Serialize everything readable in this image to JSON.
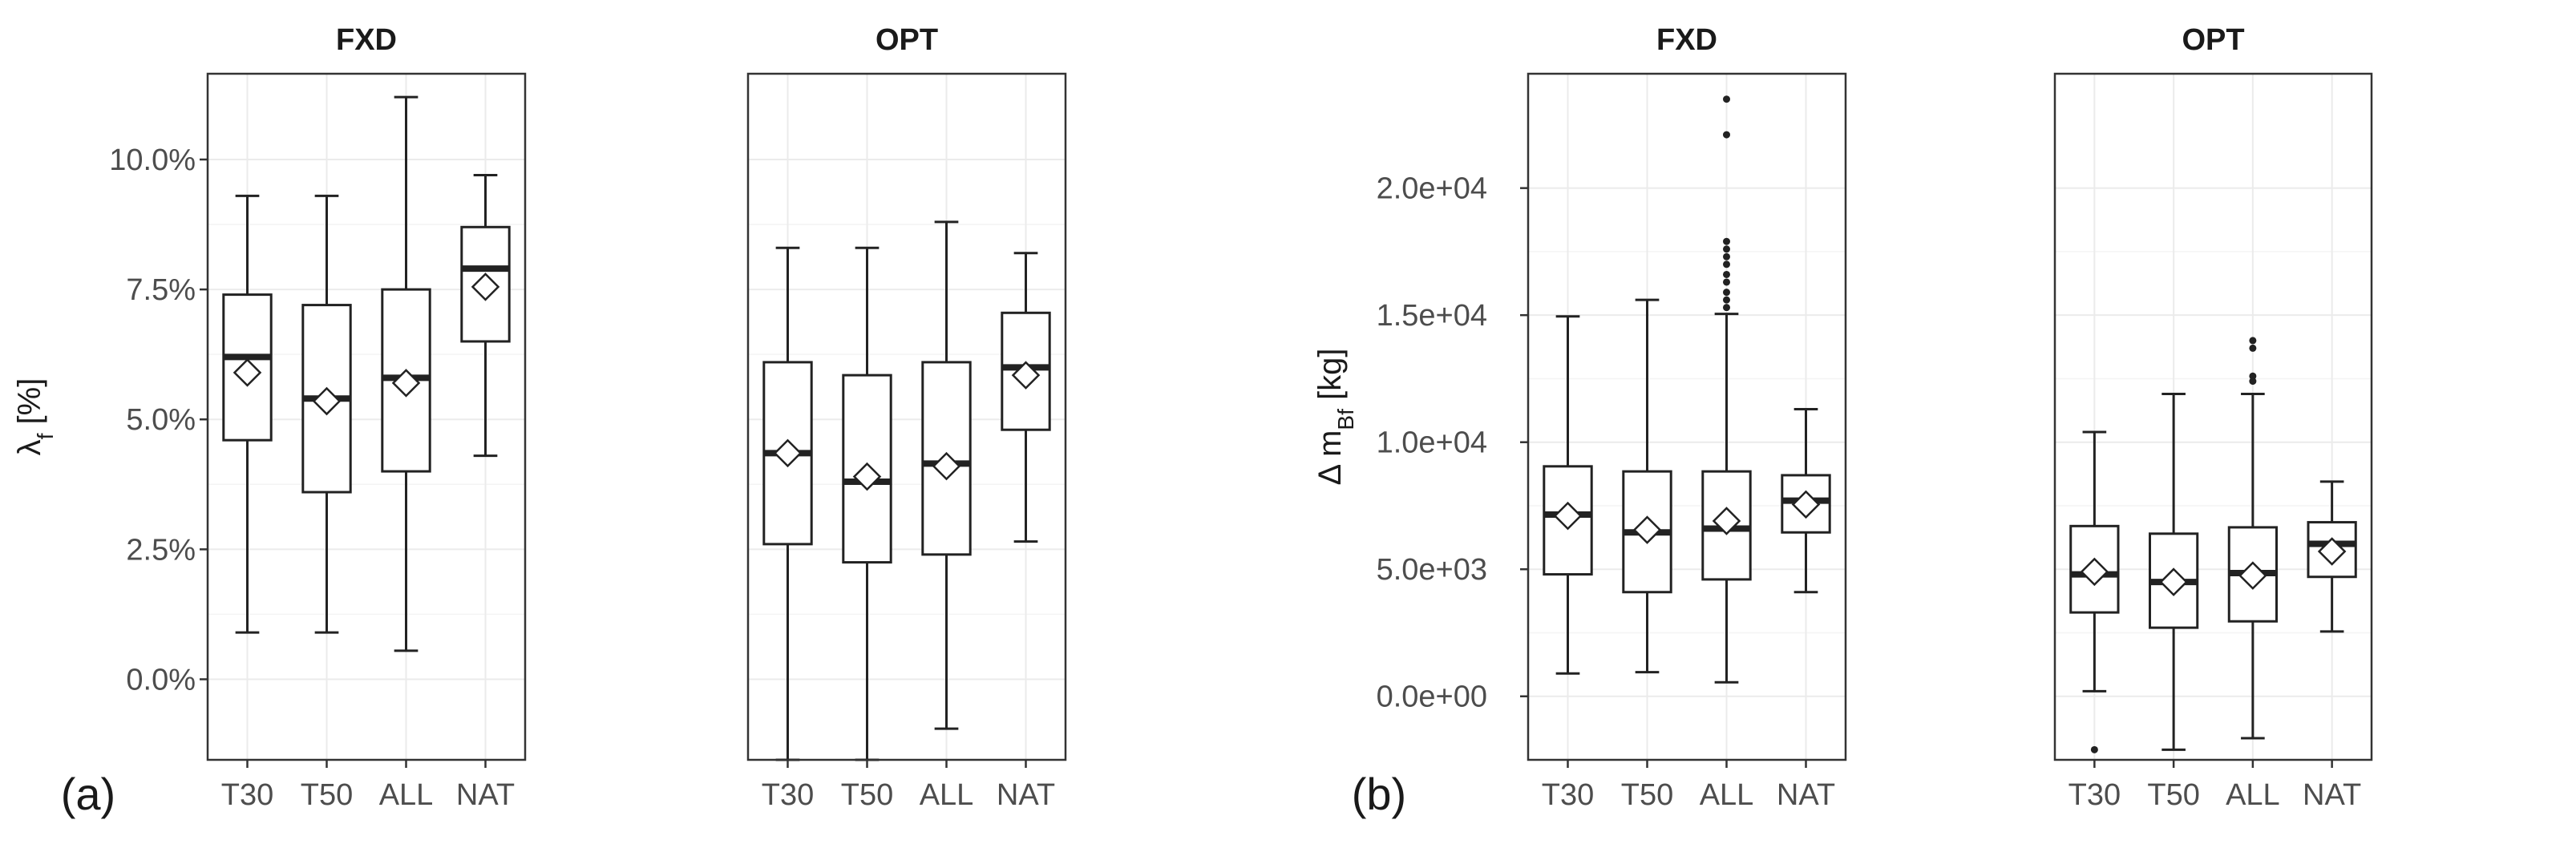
{
  "chart_data": [
    {
      "type": "boxplot",
      "panel_label": "(a)",
      "ylabel_main": "λ",
      "ylabel_sub": "f",
      "ylabel_rest": " [%]",
      "ylim": [
        -0.0155,
        0.1165
      ],
      "yticks": [
        {
          "value": 0.0,
          "label": "0.0%"
        },
        {
          "value": 0.025,
          "label": "2.5%"
        },
        {
          "value": 0.05,
          "label": "5.0%"
        },
        {
          "value": 0.075,
          "label": "7.5%"
        },
        {
          "value": 0.1,
          "label": "10.0%"
        }
      ],
      "categories": [
        "T30",
        "T50",
        "ALL",
        "NAT"
      ],
      "facets": [
        {
          "title": "FXD",
          "boxes": [
            {
              "category": "T30",
              "whisker_low": 0.009,
              "q1": 0.046,
              "median": 0.062,
              "q3": 0.074,
              "whisker_high": 0.093,
              "mean": 0.059,
              "outliers": []
            },
            {
              "category": "T50",
              "whisker_low": 0.009,
              "q1": 0.036,
              "median": 0.054,
              "q3": 0.072,
              "whisker_high": 0.093,
              "mean": 0.0535,
              "outliers": []
            },
            {
              "category": "ALL",
              "whisker_low": 0.0055,
              "q1": 0.04,
              "median": 0.058,
              "q3": 0.075,
              "whisker_high": 0.112,
              "mean": 0.057,
              "outliers": []
            },
            {
              "category": "NAT",
              "whisker_low": 0.043,
              "q1": 0.065,
              "median": 0.079,
              "q3": 0.087,
              "whisker_high": 0.097,
              "mean": 0.0755,
              "outliers": []
            }
          ]
        },
        {
          "title": "OPT",
          "boxes": [
            {
              "category": "T30",
              "whisker_low": -0.0155,
              "q1": 0.026,
              "median": 0.0435,
              "q3": 0.061,
              "whisker_high": 0.083,
              "mean": 0.0435,
              "outliers": []
            },
            {
              "category": "T50",
              "whisker_low": -0.0155,
              "q1": 0.0225,
              "median": 0.038,
              "q3": 0.0585,
              "whisker_high": 0.083,
              "mean": 0.039,
              "outliers": []
            },
            {
              "category": "ALL",
              "whisker_low": -0.0095,
              "q1": 0.024,
              "median": 0.0415,
              "q3": 0.061,
              "whisker_high": 0.088,
              "mean": 0.041,
              "outliers": []
            },
            {
              "category": "NAT",
              "whisker_low": 0.0265,
              "q1": 0.048,
              "median": 0.06,
              "q3": 0.0705,
              "whisker_high": 0.082,
              "mean": 0.0585,
              "outliers": []
            }
          ]
        }
      ]
    },
    {
      "type": "boxplot",
      "panel_label": "(b)",
      "ylabel_main": "Δ m",
      "ylabel_sub": "Bf",
      "ylabel_rest": " [kg]",
      "ylim": [
        -2500,
        24500
      ],
      "yticks": [
        {
          "value": 0,
          "label": "0.0e+00"
        },
        {
          "value": 5000,
          "label": "5.0e+03"
        },
        {
          "value": 10000,
          "label": "1.0e+04"
        },
        {
          "value": 15000,
          "label": "1.5e+04"
        },
        {
          "value": 20000,
          "label": "2.0e+04"
        }
      ],
      "categories": [
        "T30",
        "T50",
        "ALL",
        "NAT"
      ],
      "facets": [
        {
          "title": "FXD",
          "boxes": [
            {
              "category": "T30",
              "whisker_low": 900,
              "q1": 4800,
              "median": 7150,
              "q3": 9050,
              "whisker_high": 14950,
              "mean": 7100,
              "outliers": []
            },
            {
              "category": "T50",
              "whisker_low": 950,
              "q1": 4100,
              "median": 6450,
              "q3": 8850,
              "whisker_high": 15600,
              "mean": 6550,
              "outliers": []
            },
            {
              "category": "ALL",
              "whisker_low": 550,
              "q1": 4600,
              "median": 6600,
              "q3": 8850,
              "whisker_high": 15050,
              "mean": 6900,
              "outliers": [
                15300,
                15600,
                15900,
                16300,
                16600,
                17000,
                17300,
                17600,
                17900,
                22100,
                23500
              ]
            },
            {
              "category": "NAT",
              "whisker_low": 4100,
              "q1": 6450,
              "median": 7700,
              "q3": 8700,
              "whisker_high": 11300,
              "mean": 7550,
              "outliers": []
            }
          ]
        },
        {
          "title": "OPT",
          "boxes": [
            {
              "category": "T30",
              "whisker_low": 200,
              "q1": 3300,
              "median": 4800,
              "q3": 6700,
              "whisker_high": 10400,
              "mean": 4900,
              "outliers": [
                -2100
              ]
            },
            {
              "category": "T50",
              "whisker_low": -2100,
              "q1": 2700,
              "median": 4500,
              "q3": 6400,
              "whisker_high": 11900,
              "mean": 4500,
              "outliers": []
            },
            {
              "category": "ALL",
              "whisker_low": -1650,
              "q1": 2950,
              "median": 4850,
              "q3": 6650,
              "whisker_high": 11900,
              "mean": 4750,
              "outliers": [
                12400,
                12600,
                13700,
                14000
              ]
            },
            {
              "category": "NAT",
              "whisker_low": 2550,
              "q1": 4700,
              "median": 6000,
              "q3": 6850,
              "whisker_high": 8450,
              "mean": 5700,
              "outliers": []
            }
          ]
        }
      ]
    }
  ]
}
